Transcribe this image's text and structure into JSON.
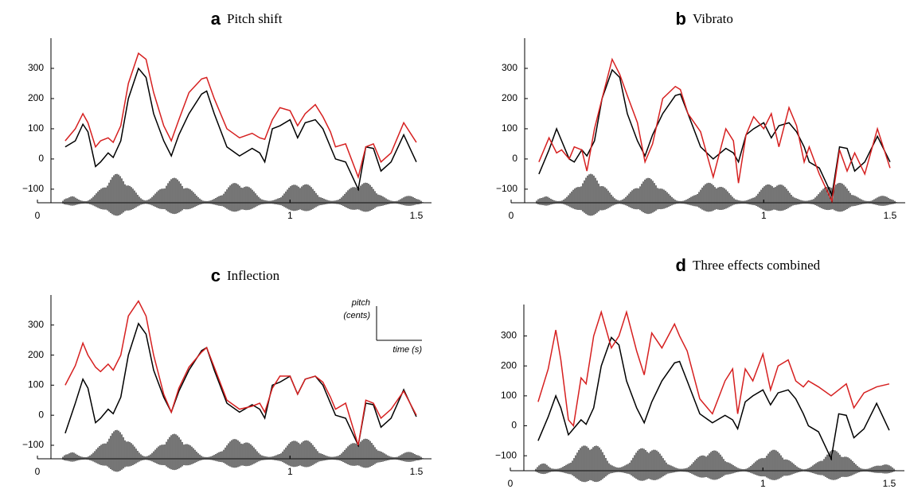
{
  "chart_data": [
    {
      "type": "line",
      "label": "a",
      "title": "Pitch shift",
      "x": [
        0.11,
        0.15,
        0.18,
        0.2,
        0.23,
        0.25,
        0.28,
        0.3,
        0.33,
        0.36,
        0.4,
        0.43,
        0.46,
        0.5,
        0.53,
        0.56,
        0.6,
        0.65,
        0.67,
        0.7,
        0.75,
        0.8,
        0.85,
        0.88,
        0.9,
        0.93,
        0.96,
        1.0,
        1.03,
        1.06,
        1.1,
        1.13,
        1.16,
        1.18,
        1.22,
        1.27,
        1.3,
        1.33,
        1.36,
        1.4,
        1.45,
        1.5
      ],
      "series": [
        {
          "color": "#000000",
          "values": [
            40,
            60,
            115,
            90,
            -25,
            -10,
            20,
            5,
            60,
            200,
            300,
            270,
            150,
            60,
            10,
            80,
            150,
            215,
            225,
            150,
            40,
            10,
            35,
            20,
            -10,
            100,
            110,
            130,
            70,
            120,
            130,
            100,
            40,
            0,
            -10,
            -100,
            40,
            35,
            -40,
            -10,
            80,
            -10
          ]
        },
        {
          "color": "#d62020",
          "values": [
            60,
            100,
            150,
            120,
            40,
            60,
            70,
            55,
            110,
            250,
            350,
            330,
            220,
            110,
            60,
            130,
            220,
            265,
            270,
            200,
            100,
            70,
            85,
            70,
            65,
            130,
            170,
            160,
            110,
            150,
            180,
            140,
            90,
            40,
            50,
            -60,
            40,
            50,
            -10,
            20,
            120,
            55
          ]
        }
      ],
      "xlim": [
        0,
        1.56
      ],
      "ylim": [
        -145,
        400
      ],
      "xticks": [
        0,
        1,
        1.5
      ],
      "yticks": [
        {
          "value": -100,
          "label": "−100"
        },
        0,
        100,
        200,
        300
      ]
    },
    {
      "type": "line",
      "label": "b",
      "title": "Vibrato",
      "x": [
        0.11,
        0.15,
        0.18,
        0.2,
        0.23,
        0.25,
        0.28,
        0.3,
        0.33,
        0.36,
        0.4,
        0.43,
        0.46,
        0.5,
        0.53,
        0.56,
        0.6,
        0.65,
        0.67,
        0.7,
        0.75,
        0.8,
        0.85,
        0.88,
        0.9,
        0.93,
        0.96,
        1.0,
        1.03,
        1.06,
        1.1,
        1.13,
        1.16,
        1.18,
        1.22,
        1.27,
        1.3,
        1.33,
        1.36,
        1.4,
        1.45,
        1.5
      ],
      "series": [
        {
          "color": "#000000",
          "values": [
            -50,
            30,
            100,
            60,
            0,
            -10,
            30,
            10,
            60,
            200,
            295,
            270,
            150,
            60,
            10,
            80,
            150,
            210,
            215,
            150,
            40,
            0,
            35,
            20,
            -10,
            80,
            100,
            120,
            70,
            110,
            120,
            90,
            40,
            -10,
            -30,
            -120,
            40,
            35,
            -40,
            -10,
            75,
            -10
          ]
        },
        {
          "color": "#d62020",
          "values": [
            -10,
            70,
            20,
            30,
            0,
            40,
            30,
            -40,
            100,
            200,
            330,
            280,
            210,
            120,
            -10,
            50,
            200,
            240,
            230,
            150,
            90,
            -60,
            100,
            60,
            -80,
            80,
            140,
            100,
            150,
            40,
            170,
            110,
            -10,
            40,
            -50,
            -140,
            30,
            -40,
            20,
            -50,
            100,
            -30
          ]
        }
      ],
      "xlim": [
        0,
        1.56
      ],
      "ylim": [
        -145,
        400
      ],
      "xticks": [
        0,
        1,
        1.5
      ],
      "yticks": [
        {
          "value": -100,
          "label": "−100"
        },
        0,
        100,
        200,
        300
      ]
    },
    {
      "type": "line",
      "label": "c",
      "title": "Inflection",
      "annotations": [
        "pitch",
        "(cents)",
        "time (s)"
      ],
      "x": [
        0.11,
        0.15,
        0.18,
        0.2,
        0.23,
        0.25,
        0.28,
        0.3,
        0.33,
        0.36,
        0.4,
        0.43,
        0.46,
        0.5,
        0.53,
        0.56,
        0.6,
        0.65,
        0.67,
        0.7,
        0.75,
        0.8,
        0.85,
        0.88,
        0.9,
        0.93,
        0.96,
        1.0,
        1.03,
        1.06,
        1.1,
        1.13,
        1.16,
        1.18,
        1.22,
        1.27,
        1.3,
        1.33,
        1.36,
        1.4,
        1.45,
        1.5
      ],
      "series": [
        {
          "color": "#000000",
          "values": [
            -60,
            40,
            120,
            90,
            -25,
            -10,
            20,
            5,
            60,
            200,
            305,
            270,
            150,
            60,
            10,
            80,
            150,
            215,
            225,
            150,
            40,
            10,
            35,
            20,
            -10,
            100,
            110,
            130,
            70,
            120,
            130,
            100,
            40,
            0,
            -10,
            -100,
            40,
            35,
            -40,
            -10,
            85,
            -5
          ]
        },
        {
          "color": "#d62020",
          "values": [
            100,
            165,
            240,
            200,
            160,
            145,
            170,
            150,
            200,
            330,
            380,
            330,
            200,
            70,
            10,
            90,
            160,
            210,
            225,
            160,
            50,
            20,
            30,
            40,
            10,
            90,
            130,
            130,
            70,
            120,
            130,
            110,
            60,
            20,
            40,
            -100,
            50,
            40,
            -10,
            20,
            80,
            0
          ]
        }
      ],
      "xlim": [
        0,
        1.56
      ],
      "ylim": [
        -145,
        400
      ],
      "xticks": [
        0,
        1,
        1.5
      ],
      "yticks": [
        {
          "value": -100,
          "label": "−100"
        },
        0,
        100,
        200,
        300
      ]
    },
    {
      "type": "line",
      "label": "d",
      "title": "Three effects combined",
      "x": [
        0.11,
        0.15,
        0.18,
        0.2,
        0.23,
        0.25,
        0.28,
        0.3,
        0.33,
        0.36,
        0.4,
        0.43,
        0.46,
        0.5,
        0.53,
        0.56,
        0.6,
        0.65,
        0.67,
        0.7,
        0.75,
        0.8,
        0.85,
        0.88,
        0.9,
        0.93,
        0.96,
        1.0,
        1.03,
        1.06,
        1.1,
        1.13,
        1.16,
        1.18,
        1.22,
        1.27,
        1.3,
        1.33,
        1.36,
        1.4,
        1.45,
        1.5
      ],
      "series": [
        {
          "color": "#000000",
          "values": [
            -50,
            30,
            100,
            60,
            -30,
            -10,
            20,
            5,
            60,
            200,
            295,
            270,
            150,
            60,
            10,
            80,
            150,
            210,
            215,
            150,
            40,
            10,
            35,
            20,
            -10,
            80,
            100,
            120,
            70,
            110,
            120,
            90,
            40,
            0,
            -20,
            -110,
            40,
            35,
            -40,
            -10,
            75,
            -15
          ]
        },
        {
          "color": "#d62020",
          "values": [
            80,
            190,
            320,
            220,
            20,
            0,
            160,
            140,
            300,
            380,
            260,
            300,
            380,
            250,
            170,
            310,
            260,
            340,
            300,
            250,
            90,
            40,
            150,
            190,
            40,
            190,
            150,
            240,
            120,
            200,
            220,
            150,
            130,
            150,
            130,
            100,
            120,
            140,
            60,
            110,
            130,
            140
          ]
        }
      ],
      "xlim": [
        0,
        1.56
      ],
      "ylim": [
        -150,
        405
      ],
      "xticks": [
        0,
        1,
        1.5
      ],
      "yticks": [
        {
          "value": -100,
          "label": "−100"
        },
        0,
        100,
        200,
        300
      ]
    }
  ]
}
